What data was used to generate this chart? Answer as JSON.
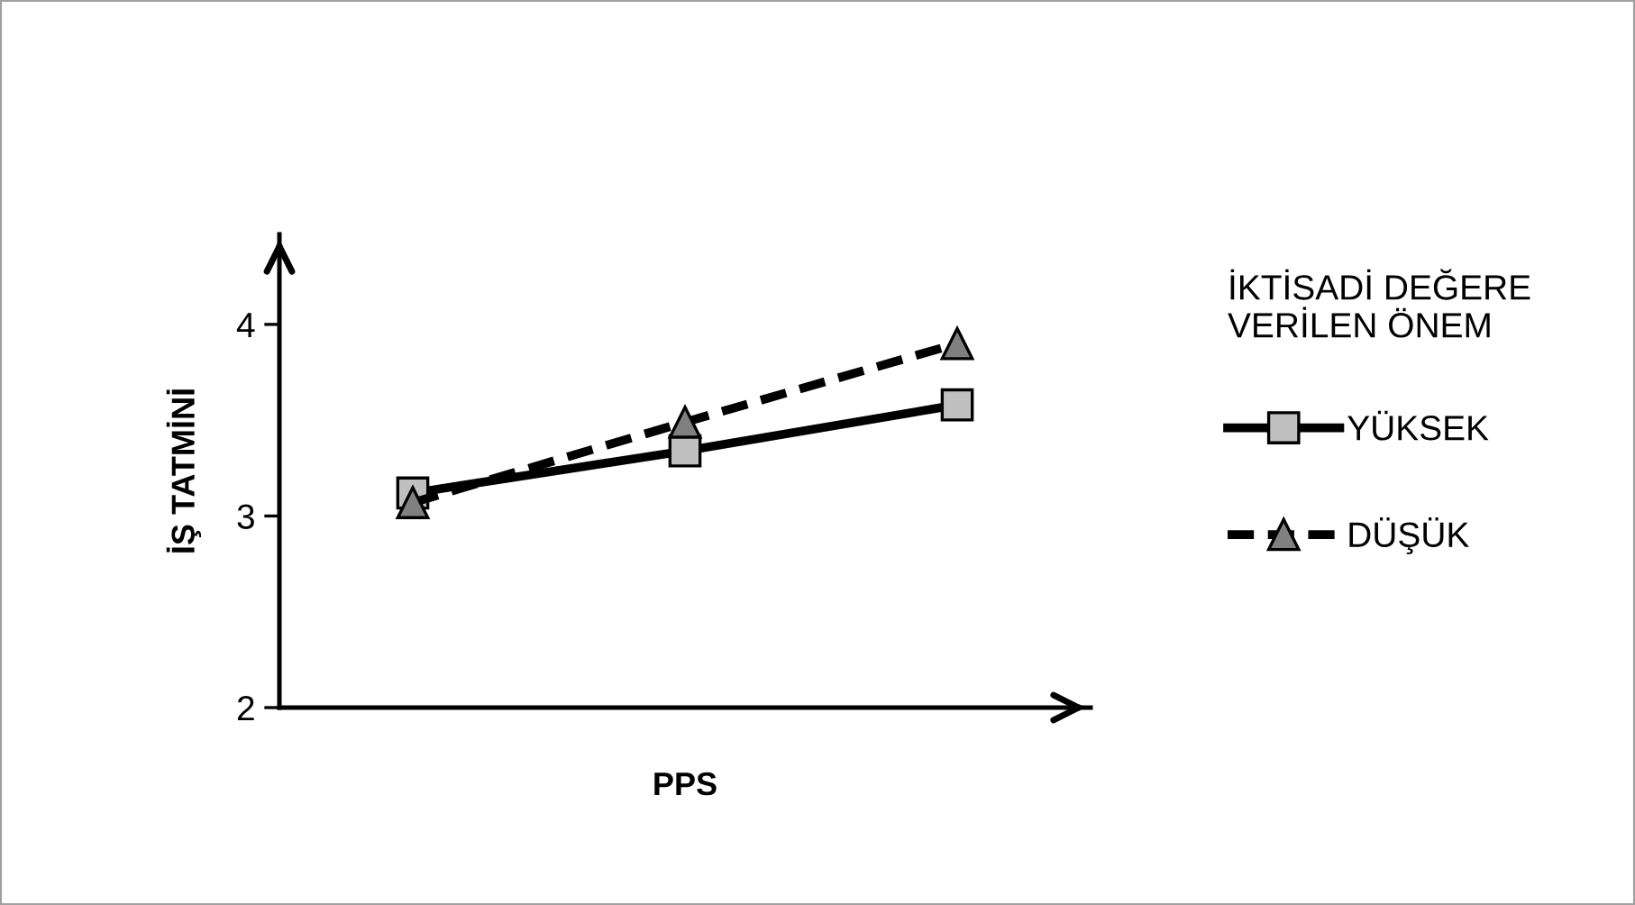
{
  "chart_data": {
    "type": "line",
    "xlabel": "PPS",
    "ylabel": "İŞ TATMİNİ",
    "legend_title": "İKTİSADİ DEĞERE\nVERİLEN ÖNEM",
    "categories": [
      null,
      null,
      null
    ],
    "series": [
      {
        "name": "YÜKSEK",
        "color": "#000000",
        "values": [
          3.12,
          3.34,
          3.58
        ],
        "marker": "square",
        "line_style": "solid"
      },
      {
        "name": "DÜŞÜK",
        "color": "#000000",
        "values": [
          3.07,
          3.49,
          3.9
        ],
        "marker": "triangle",
        "line_style": "dashed"
      }
    ],
    "ylim": [
      2,
      4.47
    ],
    "yticks": [
      2,
      3,
      4
    ],
    "grid": false,
    "legend": "right"
  }
}
